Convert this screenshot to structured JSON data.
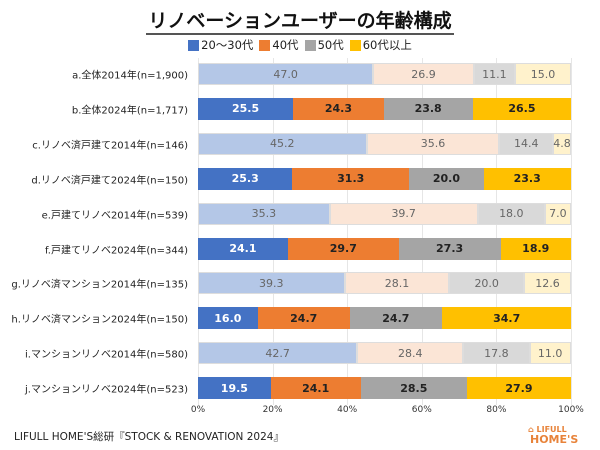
{
  "chart_data": {
    "type": "bar",
    "orientation": "horizontal-stacked-100",
    "title": "リノベーションユーザーの年齢構成",
    "categories": [
      "a.全体2014年(n=1,900)",
      "b.全体2024年(n=1,717)",
      "c.リノベ済戸建て2014年(n=146)",
      "d.リノベ済戸建て2024年(n=150)",
      "e.戸建てリノベ2014年(n=539)",
      "f.戸建てリノベ2024年(n=344)",
      "g.リノベ済マンション2014年(n=135)",
      "h.リノベ済マンション2024年(n=150)",
      "i.マンションリノベ2014年(n=580)",
      "j.マンションリノベ2024年(n=523)"
    ],
    "series": [
      {
        "name": "20〜30代",
        "color": "#4472c4",
        "light_color": "#b4c7e7",
        "values": [
          47.0,
          25.5,
          45.2,
          25.3,
          35.3,
          24.1,
          39.3,
          16.0,
          42.7,
          19.5
        ]
      },
      {
        "name": "40代",
        "color": "#ed7d31",
        "light_color": "#fbe5d6",
        "values": [
          26.9,
          24.3,
          35.6,
          31.3,
          39.7,
          29.7,
          28.1,
          24.7,
          28.4,
          24.1
        ]
      },
      {
        "name": "50代",
        "color": "#a5a5a5",
        "light_color": "#d9d9d9",
        "values": [
          11.1,
          23.8,
          14.4,
          20.0,
          18.0,
          27.3,
          20.0,
          24.7,
          17.8,
          28.5
        ]
      },
      {
        "name": "60代以上",
        "color": "#ffc000",
        "light_color": "#fff2cc",
        "values": [
          15.0,
          26.5,
          4.8,
          23.3,
          7.0,
          18.9,
          12.6,
          34.7,
          11.0,
          27.9
        ]
      }
    ],
    "xlim": [
      0,
      100
    ],
    "xticks": [
      "0%",
      "20%",
      "40%",
      "60%",
      "80%",
      "100%"
    ],
    "grid": true,
    "legend_placement": "top",
    "note": "2014 rows drawn in light tints, 2024 rows in full colors"
  },
  "footer": "LIFULL HOME'S総研『STOCK & RENOVATION 2024』",
  "logo": {
    "line1": "LIFULL",
    "line2": "HOME'S"
  }
}
